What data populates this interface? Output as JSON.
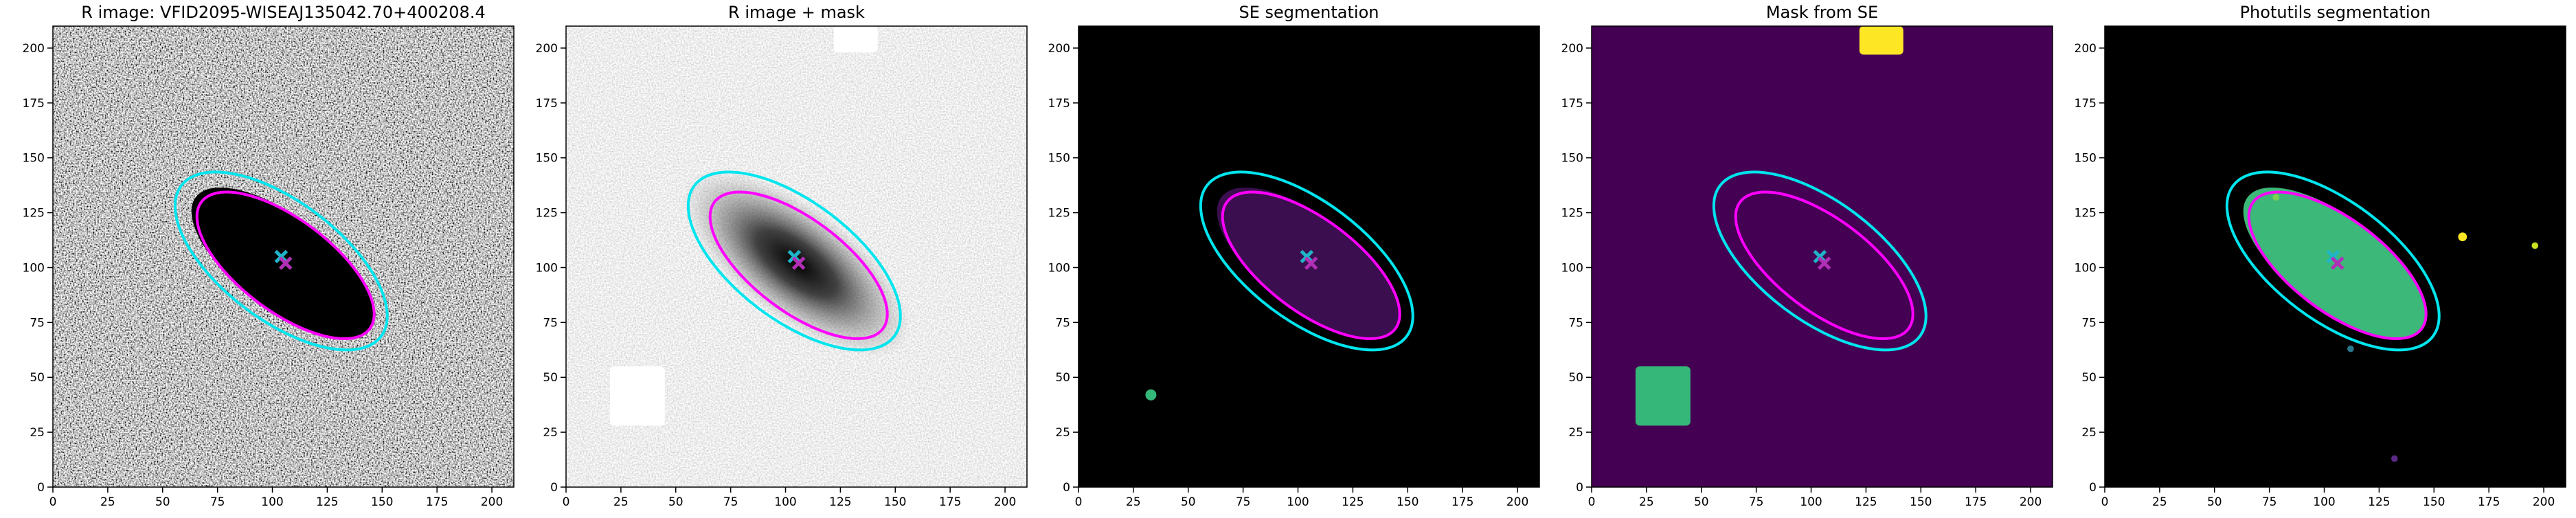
{
  "chart_data": [
    {
      "type": "image",
      "title": "R image: VFID2095-WISEAJ135042.70+400208.4",
      "xlim": [
        0,
        210
      ],
      "ylim": [
        0,
        210
      ],
      "xticks": [
        0,
        25,
        50,
        75,
        100,
        125,
        150,
        175,
        200
      ],
      "yticks": [
        0,
        25,
        50,
        75,
        100,
        125,
        150,
        175,
        200
      ]
    },
    {
      "type": "image",
      "title": "R image + mask",
      "xlim": [
        0,
        210
      ],
      "ylim": [
        0,
        210
      ],
      "xticks": [
        0,
        25,
        50,
        75,
        100,
        125,
        150,
        175,
        200
      ],
      "yticks": [
        0,
        25,
        50,
        75,
        100,
        125,
        150,
        175,
        200
      ]
    },
    {
      "type": "image",
      "title": "SE segmentation",
      "xlim": [
        0,
        210
      ],
      "ylim": [
        0,
        210
      ],
      "xticks": [
        0,
        25,
        50,
        75,
        100,
        125,
        150,
        175,
        200
      ],
      "yticks": [
        0,
        25,
        50,
        75,
        100,
        125,
        150,
        175,
        200
      ]
    },
    {
      "type": "image",
      "title": "Mask from SE",
      "xlim": [
        0,
        210
      ],
      "ylim": [
        0,
        210
      ],
      "xticks": [
        0,
        25,
        50,
        75,
        100,
        125,
        150,
        175,
        200
      ],
      "yticks": [
        0,
        25,
        50,
        75,
        100,
        125,
        150,
        175,
        200
      ]
    },
    {
      "type": "image",
      "title": "Photutils segmentation",
      "xlim": [
        0,
        210
      ],
      "ylim": [
        0,
        210
      ],
      "xticks": [
        0,
        25,
        50,
        75,
        100,
        125,
        150,
        175,
        200
      ],
      "yticks": [
        0,
        25,
        50,
        75,
        100,
        125,
        150,
        175,
        200
      ]
    }
  ]
}
